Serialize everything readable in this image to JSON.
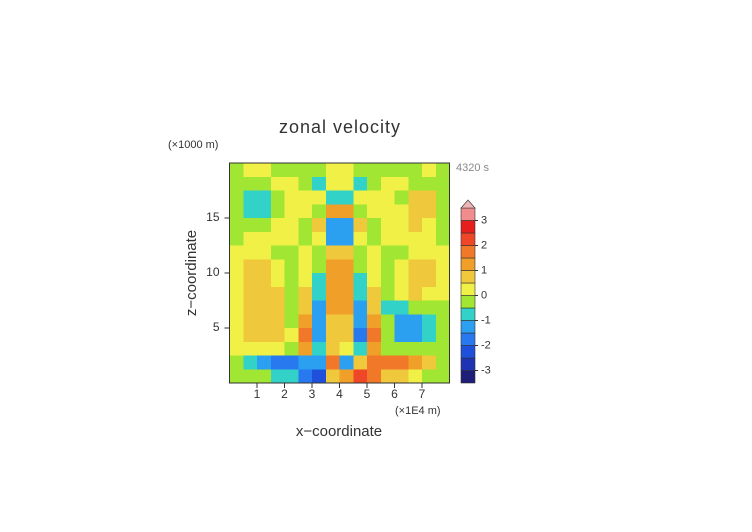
{
  "chart_data": {
    "type": "contour",
    "title": "zonal velocity",
    "y_unit": "(×1000 m)",
    "x_unit": "(×1E4 m)",
    "time_label": "4320 s",
    "xlabel": "x−coordinate",
    "ylabel": "z−coordinate",
    "xlim": [
      0,
      8
    ],
    "ylim": [
      0,
      20
    ],
    "xticks": [
      1,
      2,
      3,
      4,
      5,
      6,
      7
    ],
    "yticks": [
      5,
      10,
      15
    ],
    "x": [
      0.25,
      0.75,
      1.25,
      1.75,
      2.25,
      2.75,
      3.25,
      3.75,
      4.25,
      4.75,
      5.25,
      5.75,
      6.25,
      6.75,
      7.25,
      7.75
    ],
    "y": [
      19.375,
      18.125,
      16.875,
      15.625,
      14.375,
      13.125,
      11.875,
      10.625,
      9.375,
      8.125,
      6.875,
      5.625,
      4.375,
      3.125,
      1.875,
      0.625
    ],
    "z": [
      [
        -0.2,
        0.2,
        0.1,
        -0.2,
        -0.2,
        -0.2,
        -0.3,
        0.2,
        0.2,
        -0.3,
        -0.2,
        -0.2,
        -0.2,
        -0.2,
        0.2,
        -0.2
      ],
      [
        -0.2,
        -0.2,
        -0.2,
        0.2,
        0.2,
        -0.2,
        -0.7,
        0.3,
        0.3,
        -0.7,
        -0.2,
        0.2,
        0.2,
        -0.2,
        -0.2,
        -0.2
      ],
      [
        -0.2,
        -0.6,
        -0.7,
        -0.2,
        0.2,
        0.3,
        0.2,
        -0.8,
        -0.8,
        0.2,
        0.3,
        0.2,
        -0.2,
        0.7,
        0.6,
        -0.2
      ],
      [
        -0.2,
        -0.6,
        -0.6,
        -0.2,
        0.2,
        0.3,
        -0.3,
        1.0,
        1.0,
        -0.3,
        0.3,
        0.2,
        0.2,
        0.8,
        0.7,
        -0.2
      ],
      [
        -0.2,
        -0.3,
        -0.2,
        0.3,
        0.2,
        -0.2,
        0.6,
        -1.2,
        -1.2,
        0.6,
        -0.2,
        0.2,
        0.3,
        0.6,
        0.3,
        -0.2
      ],
      [
        -0.2,
        0.2,
        0.3,
        0.3,
        0.2,
        -0.3,
        0.4,
        -1.5,
        -1.5,
        0.4,
        -0.3,
        0.2,
        0.3,
        0.3,
        0.2,
        -0.2
      ],
      [
        0.2,
        0.3,
        0.3,
        -0.2,
        -0.3,
        0.3,
        -0.4,
        0.8,
        0.8,
        -0.4,
        0.3,
        -0.3,
        -0.2,
        0.3,
        0.3,
        0.2
      ],
      [
        0.3,
        0.6,
        0.5,
        0.2,
        -0.2,
        0.4,
        -0.5,
        1.2,
        1.0,
        -0.5,
        0.4,
        -0.2,
        0.2,
        0.5,
        0.6,
        0.3
      ],
      [
        0.3,
        0.8,
        0.8,
        0.4,
        -0.2,
        0.3,
        -0.8,
        1.3,
        1.3,
        -0.8,
        0.3,
        -0.3,
        0.3,
        0.7,
        0.7,
        0.3
      ],
      [
        0.3,
        0.8,
        0.9,
        0.5,
        -0.2,
        0.5,
        -1.0,
        1.2,
        1.2,
        -1.0,
        0.6,
        -0.5,
        0.3,
        0.5,
        0.3,
        0.2
      ],
      [
        0.2,
        0.6,
        0.8,
        0.6,
        -0.2,
        0.8,
        -1.2,
        1.0,
        1.0,
        -1.2,
        0.8,
        -0.6,
        -0.8,
        -0.5,
        -0.3,
        -0.2
      ],
      [
        0.3,
        0.5,
        0.8,
        0.8,
        -0.2,
        1.2,
        -1.4,
        0.8,
        0.8,
        -1.4,
        1.2,
        -0.4,
        -1.2,
        -1.4,
        -0.6,
        -0.2
      ],
      [
        0.3,
        0.6,
        0.9,
        0.7,
        0.2,
        1.5,
        -1.5,
        0.6,
        0.6,
        -1.6,
        1.5,
        -0.3,
        -1.3,
        -1.5,
        -0.6,
        -0.2
      ],
      [
        0.2,
        0.3,
        0.3,
        0.2,
        -0.3,
        1.3,
        -1.0,
        0.5,
        0.3,
        -1.0,
        1.2,
        -0.2,
        -0.4,
        -0.4,
        -0.2,
        -0.2
      ],
      [
        -0.3,
        -0.8,
        -1.2,
        -1.6,
        -1.8,
        -1.5,
        -1.2,
        1.5,
        -1.2,
        0.8,
        1.6,
        1.8,
        1.5,
        1.2,
        0.5,
        -0.2
      ],
      [
        -0.2,
        -0.2,
        -0.3,
        -0.6,
        -0.8,
        -1.8,
        -2.2,
        0.8,
        1.2,
        2.2,
        1.5,
        0.8,
        0.5,
        0.3,
        -0.2,
        -0.2
      ]
    ],
    "levels": [
      -3,
      -2.5,
      -2,
      -1.5,
      -1,
      -0.5,
      0,
      0.5,
      1,
      1.5,
      2,
      2.5,
      3,
      3.5
    ],
    "colors": [
      "#1e1e78",
      "#1e32b4",
      "#1e50dc",
      "#2878f0",
      "#2ca0f0",
      "#32d2c8",
      "#a0e632",
      "#f0f046",
      "#f0c83c",
      "#f0a028",
      "#f07828",
      "#f04628",
      "#e61e1e",
      "#f08c8c",
      "#f0b4b4"
    ],
    "colorbar_ticks": [
      -3,
      -2,
      -1,
      0,
      1,
      2,
      3
    ]
  }
}
